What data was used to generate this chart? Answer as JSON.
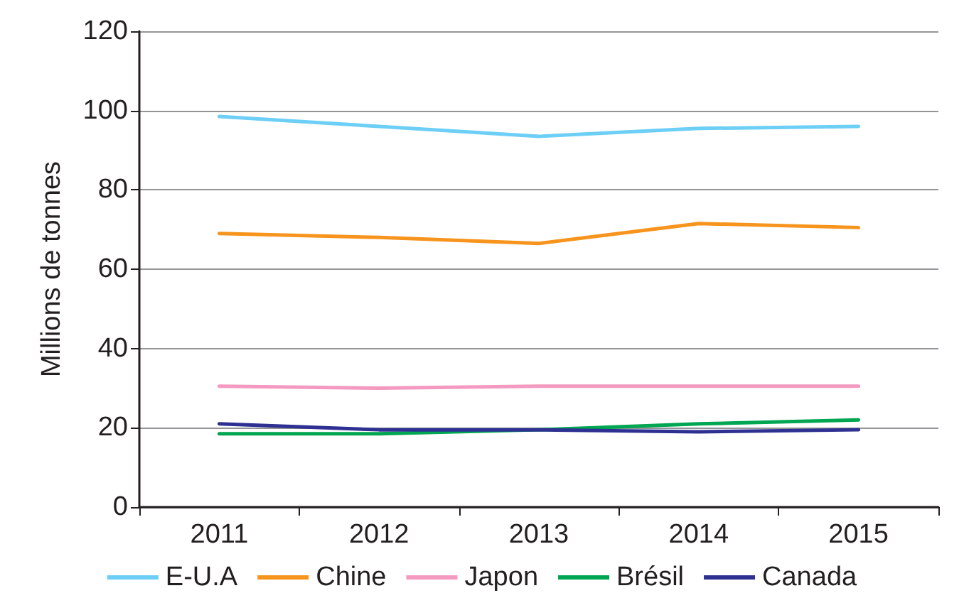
{
  "chart_data": {
    "type": "line",
    "ylabel": "Millions de tonnes",
    "categories": [
      "2011",
      "2012",
      "2013",
      "2014",
      "2015"
    ],
    "series": [
      {
        "name": "E-U.A",
        "color": "#6dcff6",
        "values": [
          98.5,
          96,
          93.5,
          95.5,
          96
        ]
      },
      {
        "name": "Chine",
        "color": "#f7941d",
        "values": [
          69,
          68,
          66.5,
          71.5,
          70.5
        ]
      },
      {
        "name": "Japon",
        "color": "#f49ac1",
        "values": [
          30.5,
          30,
          30.5,
          30.5,
          30.5
        ]
      },
      {
        "name": "Brésil",
        "color": "#00a651",
        "values": [
          18.5,
          18.5,
          19.5,
          21,
          22
        ]
      },
      {
        "name": "Canada",
        "color": "#2e3192",
        "values": [
          21,
          19.5,
          19.5,
          19,
          19.5
        ]
      }
    ],
    "ylim": [
      0,
      120
    ],
    "yticks": [
      0,
      20,
      40,
      60,
      80,
      100,
      120
    ],
    "grid": "y",
    "legend": "bottom",
    "marker": "none",
    "line_style": "solid"
  }
}
